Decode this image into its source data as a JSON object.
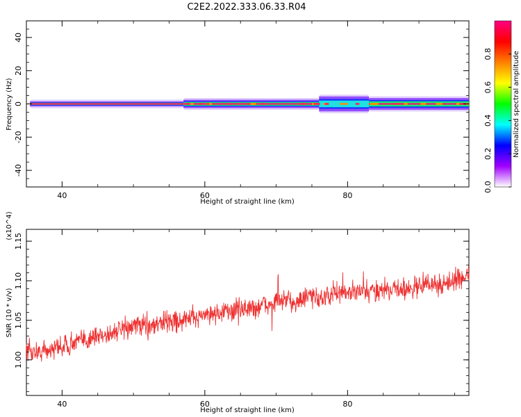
{
  "title": "C2E2.2022.333.06.33.R04",
  "colors": {
    "snr_line": "#ee3030",
    "spectrum_core": "#e8206a",
    "spectrum_mid": "#18e878",
    "spectrum_edge": "#c9a6ff"
  },
  "chart_data": [
    {
      "type": "heatmap",
      "name": "spectrogram",
      "xlabel": "Height of straight line (km)",
      "ylabel": "Frequency (Hz)",
      "xlim": [
        35,
        97
      ],
      "ylim": [
        -50,
        50
      ],
      "xticks": [
        40,
        60,
        80
      ],
      "yticks": [
        -40,
        -20,
        0,
        20,
        40
      ],
      "colorbar": {
        "label": "Normalized spectral amplitude",
        "range": [
          0,
          1
        ],
        "ticks": [
          "0.0",
          "0.2",
          "0.4",
          "0.6",
          "0.8"
        ],
        "colors": [
          "#ffffff",
          "#a000ff",
          "#0000ff",
          "#00ffff",
          "#00ff00",
          "#ffff00",
          "#ff8000",
          "#ff0000",
          "#ff0080"
        ]
      },
      "band": {
        "center_hz": 0,
        "segments": [
          {
            "x": [
              35.5,
              57
            ],
            "half_width_hz": 1.5,
            "peak": 1.0
          },
          {
            "x": [
              57,
              76
            ],
            "half_width_hz": 2.5,
            "peak": 0.95
          },
          {
            "x": [
              76,
              83
            ],
            "half_width_hz": 4.5,
            "peak": 0.55
          },
          {
            "x": [
              83,
              97
            ],
            "half_width_hz": 3.5,
            "peak": 0.7
          }
        ]
      }
    },
    {
      "type": "line",
      "name": "snr",
      "xlabel": "Height of straight line (km)",
      "ylabel": "SNR (10 * v/v)",
      "y_multiplier": "(x10^4)",
      "xlim": [
        35,
        97
      ],
      "ylim": [
        0.955,
        1.165
      ],
      "xticks": [
        40,
        60,
        80
      ],
      "yticks": [
        "1.00",
        "1.05",
        "1.10",
        "1.15"
      ],
      "series": [
        {
          "x": [
            35,
            37,
            39,
            41,
            43,
            45,
            47,
            49,
            51,
            53,
            55,
            57,
            59,
            61,
            63,
            65,
            67,
            69,
            71,
            73,
            75,
            77,
            79,
            81,
            83,
            85,
            87,
            89,
            91,
            93,
            95,
            97
          ],
          "values": [
            1.01,
            1.01,
            1.015,
            1.02,
            1.025,
            1.03,
            1.035,
            1.04,
            1.045,
            1.045,
            1.05,
            1.05,
            1.055,
            1.06,
            1.06,
            1.065,
            1.065,
            1.07,
            1.075,
            1.075,
            1.08,
            1.08,
            1.085,
            1.085,
            1.085,
            1.09,
            1.09,
            1.09,
            1.095,
            1.095,
            1.1,
            1.11
          ],
          "noise_amplitude": 0.02
        }
      ]
    }
  ]
}
